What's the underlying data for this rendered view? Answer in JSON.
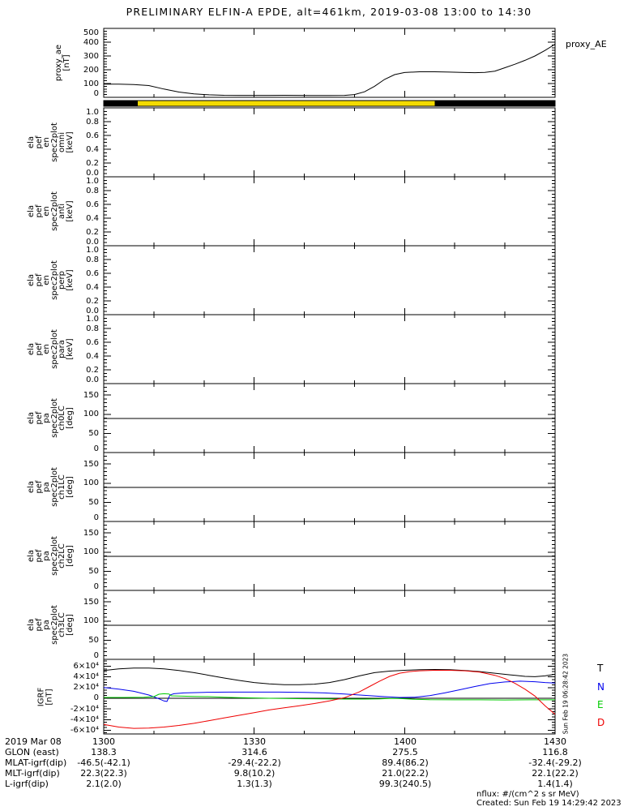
{
  "title": "PRELIMINARY ELFIN-A EPDE, alt=461km, 2019-03-08 13:00 to 14:30",
  "colors": {
    "background": "#ffffff",
    "foreground": "#000000",
    "mode_bar_yellow": "#f3db00",
    "igrf_T": "#000000",
    "igrf_N": "#0000ee",
    "igrf_E": "#00cc00",
    "igrf_D": "#ee0000"
  },
  "panels": [
    {
      "name": "proxy_ae",
      "label": "proxy_ae\n[nT]",
      "yticks": [
        {
          "v": 0,
          "label": "0"
        },
        {
          "v": 100,
          "label": "100"
        },
        {
          "v": 200,
          "label": "200"
        },
        {
          "v": 300,
          "label": "300"
        },
        {
          "v": 400,
          "label": "400"
        },
        {
          "v": 500,
          "label": "500"
        }
      ]
    },
    {
      "name": "mode-bar"
    },
    {
      "name": "ela_pef_en_spec2plot_omni",
      "label": "ela\npef\nen\nspec2plot\nomni\n[keV]",
      "yticks": [
        {
          "v": 0,
          "label": "0.0"
        },
        {
          "v": 0.2,
          "label": "0.2"
        },
        {
          "v": 0.4,
          "label": "0.4"
        },
        {
          "v": 0.6,
          "label": "0.6"
        },
        {
          "v": 0.8,
          "label": "0.8"
        },
        {
          "v": 1,
          "label": "1.0"
        }
      ]
    },
    {
      "name": "ela_pef_en_spec2plot_anti",
      "label": "ela\npef\nen\nspec2plot\nanti\n[keV]",
      "yticks": [
        {
          "v": 0,
          "label": "0.0"
        },
        {
          "v": 0.2,
          "label": "0.2"
        },
        {
          "v": 0.4,
          "label": "0.4"
        },
        {
          "v": 0.6,
          "label": "0.6"
        },
        {
          "v": 0.8,
          "label": "0.8"
        },
        {
          "v": 1,
          "label": "1.0"
        }
      ]
    },
    {
      "name": "ela_pef_en_spec2plot_perp",
      "label": "ela\npef\nen\nspec2plot\nperp\n[keV]",
      "yticks": [
        {
          "v": 0,
          "label": "0.0"
        },
        {
          "v": 0.2,
          "label": "0.2"
        },
        {
          "v": 0.4,
          "label": "0.4"
        },
        {
          "v": 0.6,
          "label": "0.6"
        },
        {
          "v": 0.8,
          "label": "0.8"
        },
        {
          "v": 1,
          "label": "1.0"
        }
      ]
    },
    {
      "name": "ela_pef_en_spec2plot_para",
      "label": "ela\npef\nen\nspec2plot\npara\n[keV]",
      "yticks": [
        {
          "v": 0,
          "label": "0.0"
        },
        {
          "v": 0.2,
          "label": "0.2"
        },
        {
          "v": 0.4,
          "label": "0.4"
        },
        {
          "v": 0.6,
          "label": "0.6"
        },
        {
          "v": 0.8,
          "label": "0.8"
        },
        {
          "v": 1,
          "label": "1.0"
        }
      ]
    },
    {
      "name": "ela_pef_pa_spec2plot_ch0LC",
      "label": "ela\npef\npa\nspec2plot\nch0LC\n[deg]",
      "yticks": [
        {
          "v": 0,
          "label": "0"
        },
        {
          "v": 50,
          "label": "50"
        },
        {
          "v": 100,
          "label": "100"
        },
        {
          "v": 150,
          "label": "150"
        }
      ]
    },
    {
      "name": "ela_pef_pa_spec2plot_ch1LC",
      "label": "ela\npef\npa\nspec2plot\nch1LC\n[deg]",
      "yticks": [
        {
          "v": 0,
          "label": "0"
        },
        {
          "v": 50,
          "label": "50"
        },
        {
          "v": 100,
          "label": "100"
        },
        {
          "v": 150,
          "label": "150"
        }
      ]
    },
    {
      "name": "ela_pef_pa_spec2plot_ch2LC",
      "label": "ela\npef\npa\nspec2plot\nch2LC\n[deg]",
      "yticks": [
        {
          "v": 0,
          "label": "0"
        },
        {
          "v": 50,
          "label": "50"
        },
        {
          "v": 100,
          "label": "100"
        },
        {
          "v": 150,
          "label": "150"
        }
      ]
    },
    {
      "name": "ela_pef_pa_spec2plot_ch3LC",
      "label": "ela\npef\npa\nspec2plot\nch3LC\n[deg]",
      "yticks": [
        {
          "v": 0,
          "label": "0"
        },
        {
          "v": 50,
          "label": "50"
        },
        {
          "v": 100,
          "label": "100"
        },
        {
          "v": 150,
          "label": "150"
        }
      ]
    },
    {
      "name": "igrf",
      "label": "IGRF\n[nT]",
      "yticks": [
        {
          "v": 60000,
          "label": "6×10⁴"
        },
        {
          "v": 40000,
          "label": "4×10⁴"
        },
        {
          "v": 20000,
          "label": "2×10⁴"
        },
        {
          "v": 0,
          "label": "0"
        },
        {
          "v": -20000,
          "label": "-2×10⁴"
        },
        {
          "v": -40000,
          "label": "-4×10⁴"
        },
        {
          "v": -60000,
          "label": "-6×10⁴"
        }
      ]
    }
  ],
  "chart_data": [
    {
      "panel": "proxy_ae",
      "type": "line",
      "ylabel": "proxy_ae [nT]",
      "ylim": [
        0,
        500
      ],
      "legend": "proxy_AE",
      "color": "#000000",
      "x_minutes_from_1300": [
        0,
        3,
        6,
        9,
        12,
        15,
        18,
        21,
        24,
        27,
        30,
        33,
        36,
        39,
        42,
        45,
        48,
        50,
        52,
        54,
        56,
        58,
        60,
        63,
        66,
        69,
        72,
        74,
        76,
        78,
        80,
        82,
        84,
        86,
        88,
        90
      ],
      "values": [
        95,
        95,
        93,
        85,
        60,
        38,
        25,
        18,
        15,
        14,
        14,
        14,
        15,
        14,
        13,
        13,
        14,
        20,
        40,
        80,
        130,
        165,
        180,
        185,
        185,
        183,
        180,
        179,
        181,
        190,
        215,
        240,
        268,
        300,
        340,
        385
      ]
    },
    {
      "panel": "mode_bar",
      "type": "bar",
      "segments": [
        {
          "start_min": 0,
          "end_min": 6.8,
          "color_name": "black"
        },
        {
          "start_min": 6.8,
          "end_min": 66,
          "color_name": "yellow"
        },
        {
          "start_min": 66,
          "end_min": 90,
          "color_name": "black"
        }
      ]
    },
    {
      "panel": "ela_pef_en_spec2plot_omni",
      "type": "heatmap",
      "ylim": [
        0,
        1
      ],
      "note": "no data plotted (blank panel)"
    },
    {
      "panel": "ela_pef_en_spec2plot_anti",
      "type": "heatmap",
      "ylim": [
        0,
        1
      ],
      "note": "no data plotted (blank panel)"
    },
    {
      "panel": "ela_pef_en_spec2plot_perp",
      "type": "heatmap",
      "ylim": [
        0,
        1
      ],
      "note": "no data plotted (blank panel)"
    },
    {
      "panel": "ela_pef_en_spec2plot_para",
      "type": "heatmap",
      "ylim": [
        0,
        1
      ],
      "note": "no data plotted (blank panel)"
    },
    {
      "panel": "ela_pef_pa_spec2plot_ch0LC",
      "type": "heatmap",
      "ylim": [
        0,
        180
      ],
      "overlay_hline_deg": 89,
      "note": "no data plotted (blank panel)"
    },
    {
      "panel": "ela_pef_pa_spec2plot_ch1LC",
      "type": "heatmap",
      "ylim": [
        0,
        180
      ],
      "overlay_hline_deg": 89,
      "note": "no data plotted (blank panel)"
    },
    {
      "panel": "ela_pef_pa_spec2plot_ch2LC",
      "type": "heatmap",
      "ylim": [
        0,
        180
      ],
      "overlay_hline_deg": 89,
      "note": "no data plotted (blank panel)"
    },
    {
      "panel": "ela_pef_pa_spec2plot_ch3LC",
      "type": "heatmap",
      "ylim": [
        0,
        180
      ],
      "overlay_hline_deg": 89,
      "note": "no data plotted (blank panel)"
    },
    {
      "panel": "IGRF",
      "type": "line",
      "ylabel": "IGRF [nT]",
      "ylim": [
        -67000,
        73000
      ],
      "zero_line": true,
      "series": [
        {
          "name": "T",
          "color": "#000000",
          "x_minutes_from_1300": [
            0,
            3,
            6,
            9,
            12,
            15,
            18,
            21,
            24,
            27,
            30,
            33,
            36,
            39,
            42,
            45,
            48,
            51,
            54,
            57,
            60,
            63,
            66,
            69,
            72,
            75,
            78,
            81,
            84,
            86,
            88,
            90
          ],
          "values": [
            52000,
            55000,
            56500,
            56500,
            55000,
            52000,
            48000,
            43000,
            38000,
            33500,
            29500,
            27000,
            25500,
            25500,
            26500,
            29500,
            35000,
            42000,
            48000,
            51000,
            52500,
            53500,
            54000,
            53500,
            52000,
            50000,
            47000,
            44000,
            41000,
            40500,
            42000,
            45000
          ]
        },
        {
          "name": "N",
          "color": "#0000ee",
          "x_minutes_from_1300": [
            0,
            3,
            6,
            9,
            11,
            12,
            12.6,
            13.2,
            14,
            16,
            20,
            25,
            30,
            35,
            40,
            44,
            48,
            52,
            56,
            59,
            62,
            65,
            68,
            71,
            74,
            77,
            80,
            83,
            86,
            88,
            90
          ],
          "values": [
            20000,
            17000,
            13000,
            6000,
            -1000,
            -5000,
            -6000,
            6000,
            8500,
            10000,
            11000,
            11500,
            11500,
            11500,
            11000,
            10000,
            8000,
            5500,
            3000,
            1500,
            2000,
            5000,
            10000,
            16000,
            22000,
            27500,
            30500,
            32000,
            31000,
            29500,
            28500
          ]
        },
        {
          "name": "E",
          "color": "#00cc00",
          "x_minutes_from_1300": [
            0,
            4,
            8,
            10,
            11,
            12,
            13,
            13.5,
            15,
            18,
            21,
            24,
            27,
            30,
            33,
            36,
            40,
            44,
            48,
            52,
            55,
            57,
            58.5,
            60,
            62,
            65,
            70,
            75,
            80,
            85,
            90
          ],
          "values": [
            1500,
            1500,
            2000,
            3000,
            7500,
            8500,
            8000,
            4500,
            4000,
            3500,
            3000,
            2000,
            1000,
            500,
            0,
            -500,
            -1000,
            -1200,
            -1500,
            -1500,
            -1200,
            -500,
            -200,
            -1000,
            -2000,
            -2800,
            -3000,
            -3000,
            -3200,
            -3000,
            -3000
          ]
        },
        {
          "name": "D",
          "color": "#ee0000",
          "x_minutes_from_1300": [
            0,
            3,
            6,
            9,
            12,
            15,
            18,
            21,
            24,
            27,
            30,
            33,
            36,
            39,
            42,
            45,
            48,
            51,
            53,
            55,
            57,
            59,
            61,
            63,
            66,
            69,
            72,
            75,
            78,
            80,
            82,
            84,
            86,
            88,
            90
          ],
          "values": [
            -49000,
            -54000,
            -56500,
            -56000,
            -54000,
            -51000,
            -47000,
            -42000,
            -37000,
            -32000,
            -27000,
            -22000,
            -18000,
            -14000,
            -10000,
            -5000,
            1000,
            12000,
            22000,
            32000,
            41000,
            47000,
            50000,
            51500,
            52500,
            52500,
            51500,
            49000,
            43000,
            37000,
            28000,
            17000,
            4000,
            -14000,
            -30000
          ]
        }
      ]
    }
  ],
  "xaxis": {
    "tick_labels": [
      "1300",
      "1330",
      "1400",
      "1430"
    ],
    "xlim_minutes": [
      0,
      90
    ],
    "major_minutes": [
      0,
      30,
      60,
      90
    ],
    "minor_step_minutes": 10
  },
  "footer": {
    "rows": [
      {
        "label": "2019 Mar 08",
        "values": [
          "1300",
          "1330",
          "1400",
          "1430"
        ]
      },
      {
        "label": "GLON (east)",
        "values": [
          "138.3",
          "314.6",
          "275.5",
          "116.8"
        ]
      },
      {
        "label": "MLAT-igrf(dip)",
        "values": [
          "-46.5(-42.1)",
          "-29.4(-22.2)",
          "89.4(86.2)",
          "-32.4(-29.2)"
        ]
      },
      {
        "label": "MLT-igrf(dip)",
        "values": [
          "22.3(22.3)",
          "9.8(10.2)",
          "21.0(22.2)",
          "22.1(22.2)"
        ]
      },
      {
        "label": "L-igrf(dip)",
        "values": [
          "2.1(2.0)",
          "1.3(1.3)",
          "99.3(240.5)",
          "1.4(1.4)"
        ]
      }
    ]
  },
  "annotations": {
    "nflux": "nflux: #/(cm^2 s sr MeV)",
    "created": "Created: Sun Feb 19 14:29:42 2023",
    "side_timestamp": "Sun Feb 19 06:28:42 2023"
  }
}
